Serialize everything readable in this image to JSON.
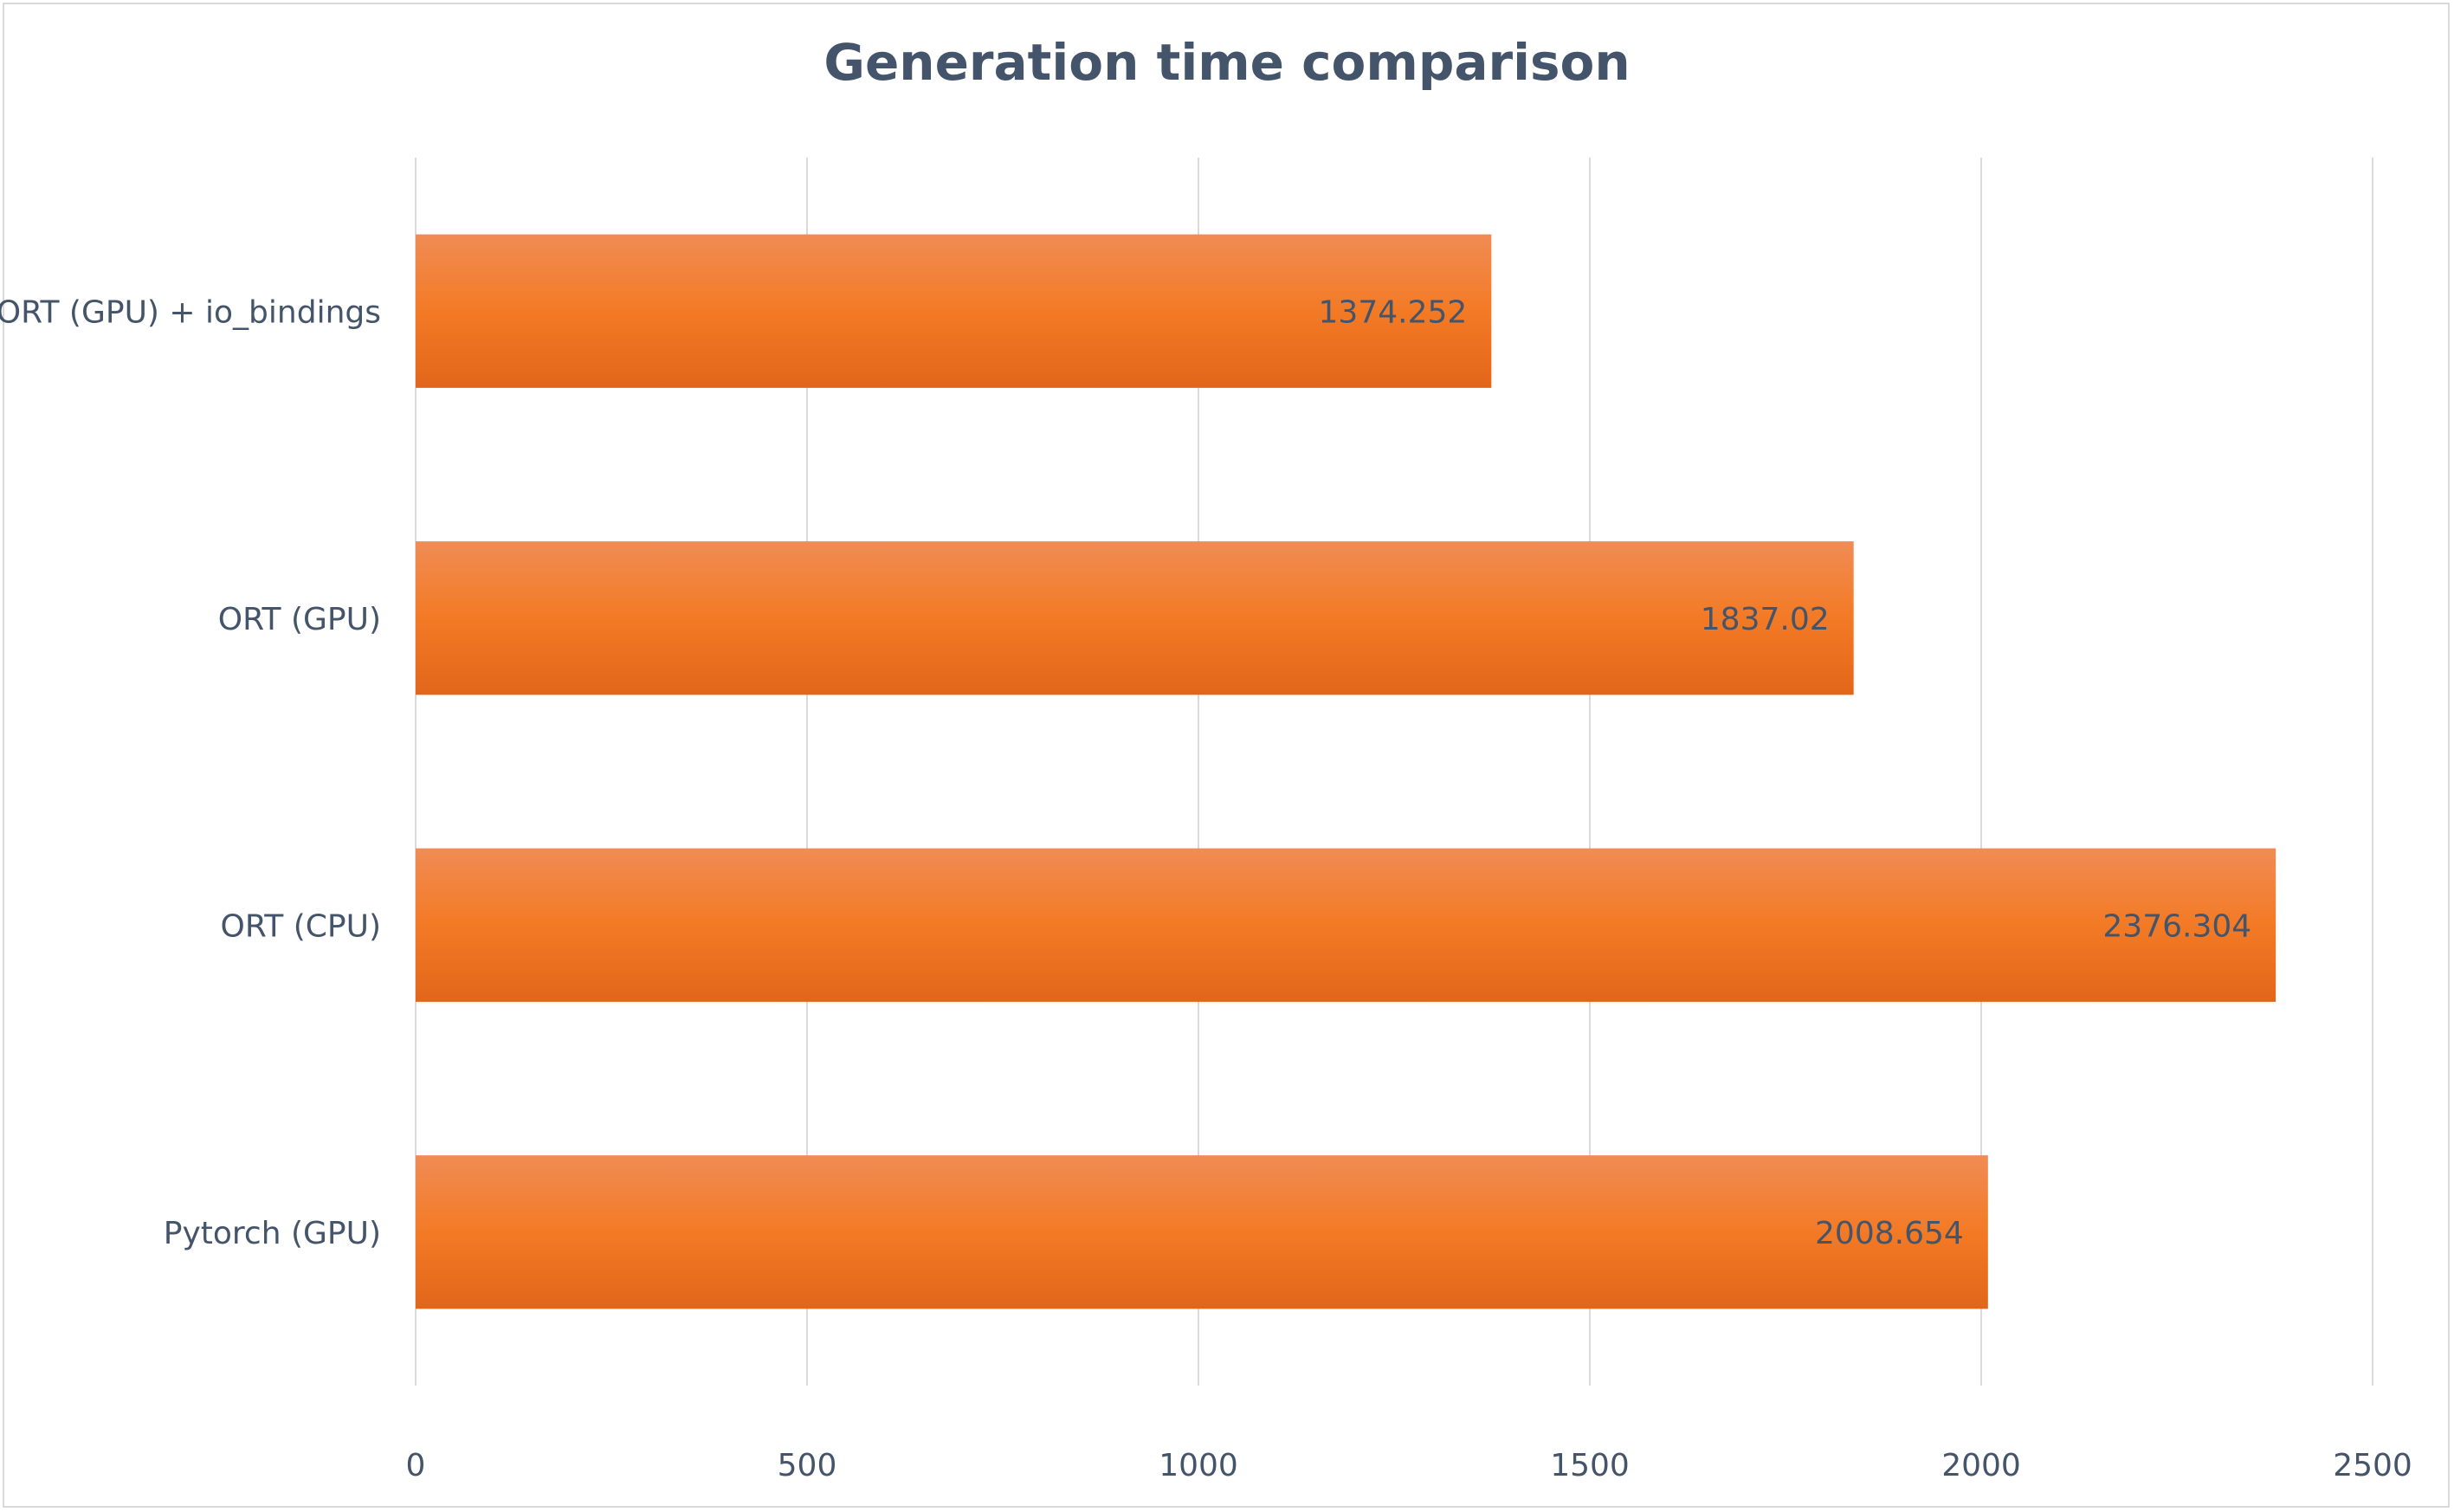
{
  "chart_data": {
    "type": "bar",
    "orientation": "horizontal",
    "title": "Generation time comparison",
    "categories": [
      "ORT (GPU) + io_bindings",
      "ORT (GPU)",
      "ORT (CPU)",
      "Pytorch (GPU)"
    ],
    "values": [
      1374.252,
      1837.02,
      2376.304,
      2008.654
    ],
    "data_labels": [
      "1374.252",
      "1837.02",
      "2376.304",
      "2008.654"
    ],
    "xlim": [
      0,
      2500
    ],
    "x_ticks": [
      "0",
      "500",
      "1000",
      "1500",
      "2000",
      "2500"
    ],
    "grid": true,
    "legend": "none",
    "colors": {
      "bar_top": "#f08c54",
      "bar_mid": "#f37a25",
      "bar_bottom": "#e2661a",
      "grid": "#d9d9d9",
      "text": "#44546a"
    }
  }
}
